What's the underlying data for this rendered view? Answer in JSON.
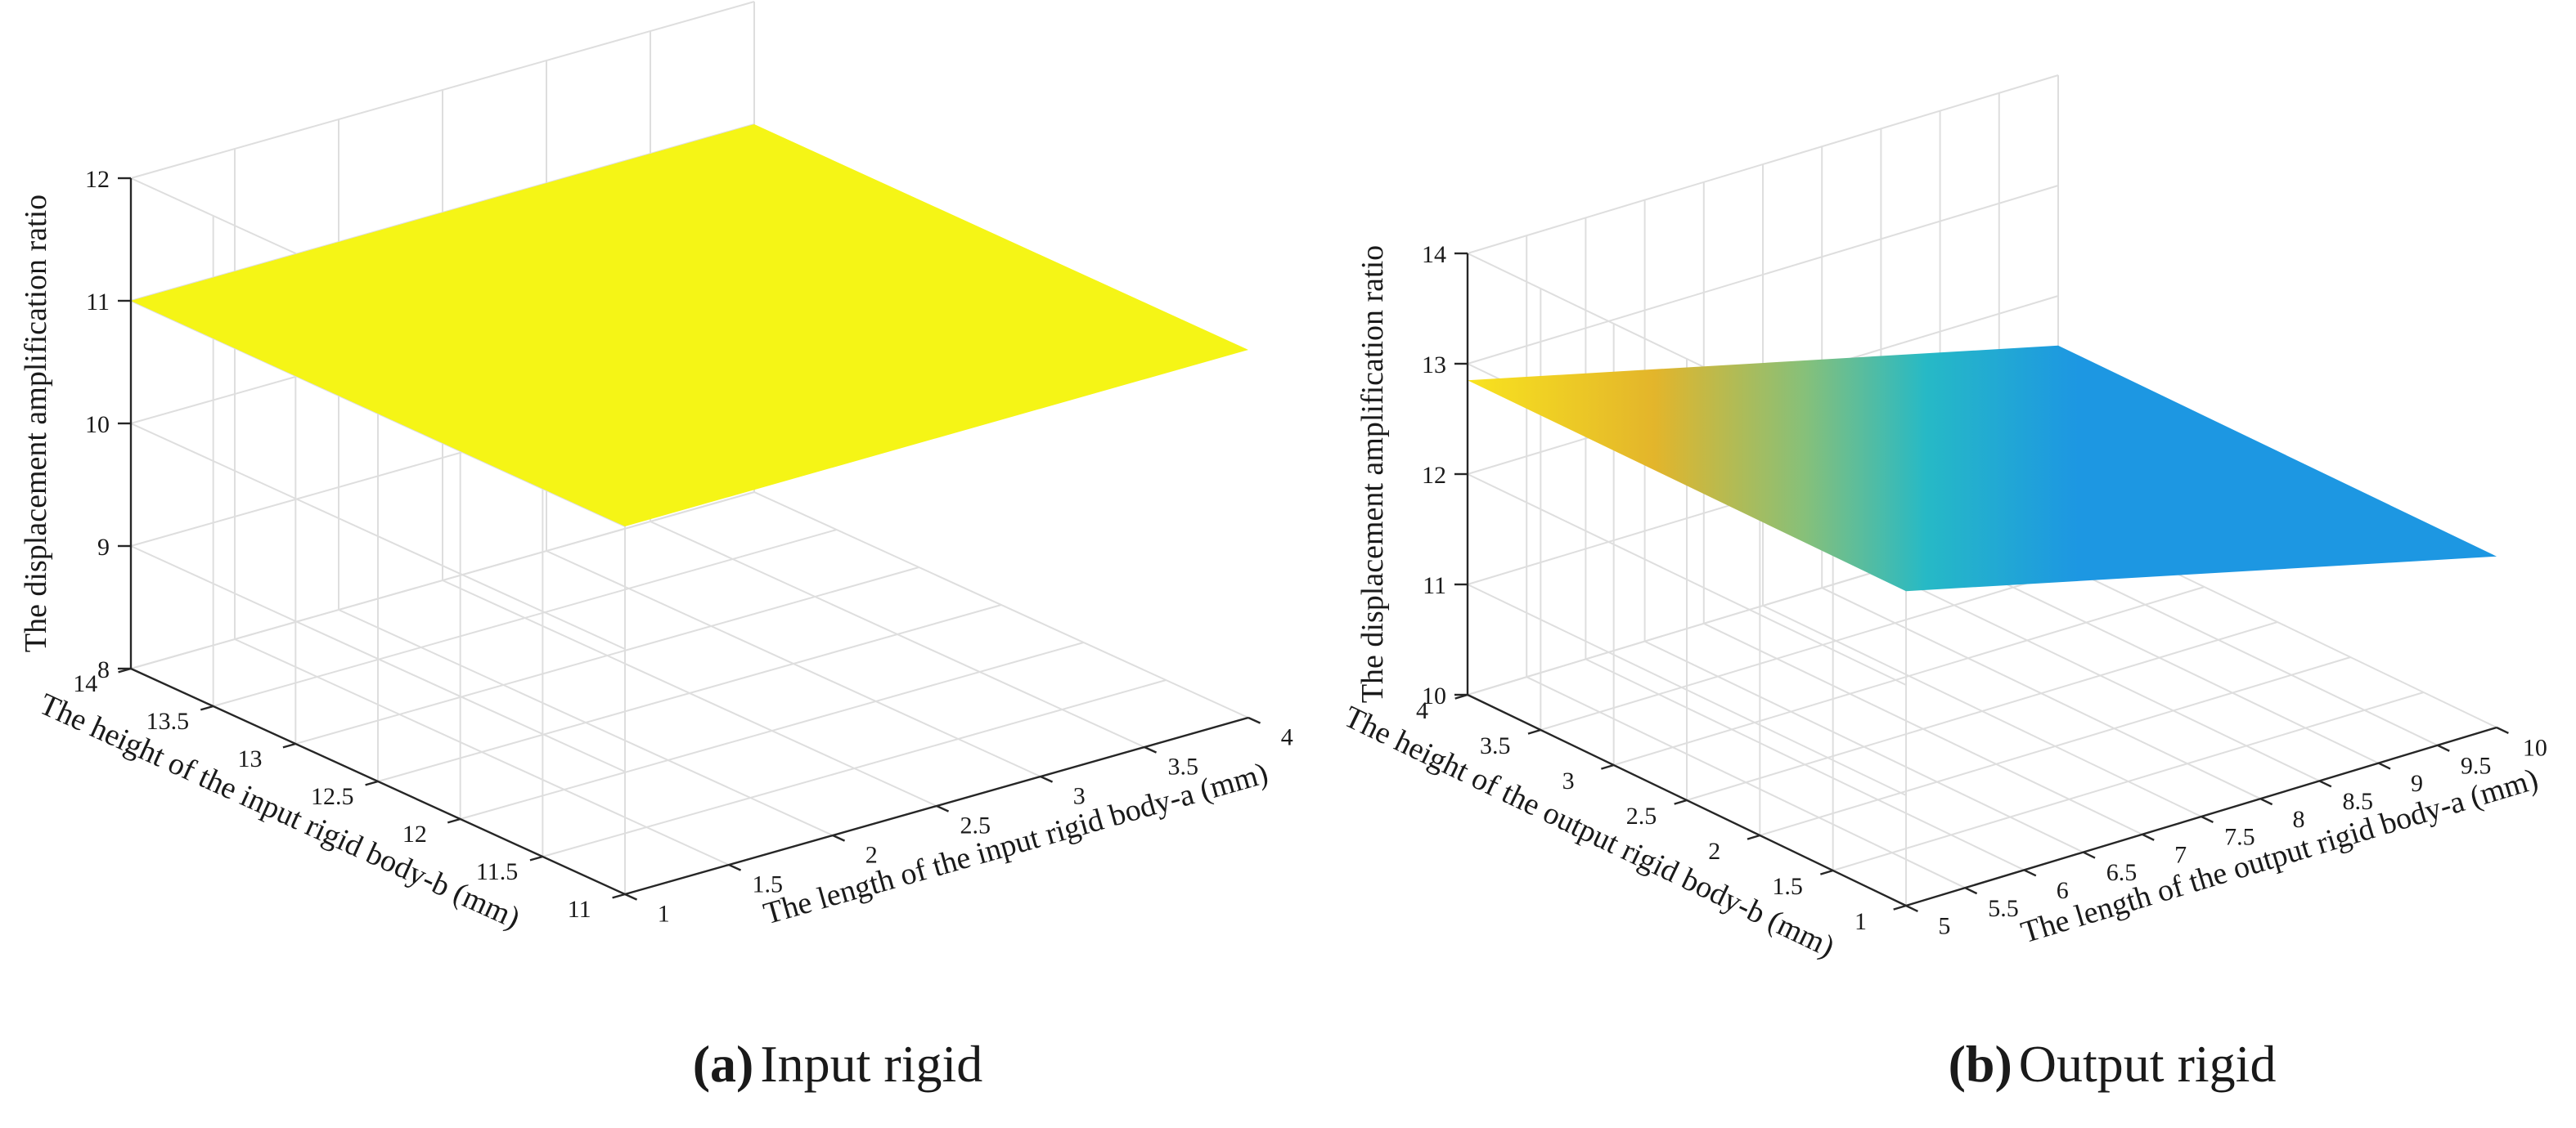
{
  "chart_data": [
    {
      "type": "surface3d",
      "panel": "a",
      "caption_tag": "(a)",
      "caption_text": "Input rigid",
      "xlabel": "The length of the input rigid body-a (mm)",
      "ylabel": "The height of the input rigid body-b (mm)",
      "zlabel": "The displacement amplification ratio",
      "xlim": [
        1,
        4
      ],
      "ylim": [
        11,
        14
      ],
      "zlim": [
        8,
        12
      ],
      "xticks": [
        1,
        1.5,
        2,
        2.5,
        3,
        3.5,
        4
      ],
      "xticklabels": [
        "1",
        "1.5",
        "2",
        "2.5",
        "3",
        "3.5",
        "4"
      ],
      "yticks": [
        11,
        11.5,
        12,
        12.5,
        13,
        13.5,
        14
      ],
      "yticklabels": [
        "11",
        "11.5",
        "12",
        "12.5",
        "13",
        "13.5",
        "14"
      ],
      "zticks": [
        8,
        9,
        10,
        11,
        12
      ],
      "zticklabels": [
        "8",
        "9",
        "10",
        "11",
        "12"
      ],
      "grid": true,
      "surface": {
        "z_constant": 11,
        "colormap": "parula",
        "color": "#f5f516"
      }
    },
    {
      "type": "surface3d",
      "panel": "b",
      "caption_tag": "(b)",
      "caption_text": "Output rigid",
      "xlabel": "The length of the output rigid body-a (mm)",
      "ylabel": "The height of the output rigid body-b (mm)",
      "zlabel": "The displacement amplification ratio",
      "xlim": [
        5,
        10
      ],
      "ylim": [
        1,
        4
      ],
      "zlim": [
        10,
        14
      ],
      "xticks": [
        5,
        5.5,
        6,
        6.5,
        7,
        7.5,
        8,
        8.5,
        9,
        9.5,
        10
      ],
      "xticklabels": [
        "5",
        "5.5",
        "6",
        "6.5",
        "7",
        "7.5",
        "8",
        "8.5",
        "9",
        "9.5",
        "10"
      ],
      "yticks": [
        1,
        1.5,
        2,
        2.5,
        3,
        3.5,
        4
      ],
      "yticklabels": [
        "1",
        "1.5",
        "2",
        "2.5",
        "3",
        "3.5",
        "4"
      ],
      "zticks": [
        10,
        11,
        12,
        13,
        14
      ],
      "zticklabels": [
        "10",
        "11",
        "12",
        "13",
        "14"
      ],
      "grid": true,
      "surface": {
        "z_at_x_min": 12.85,
        "z_at_x_max": 11.55,
        "colormap": "parula"
      }
    }
  ]
}
